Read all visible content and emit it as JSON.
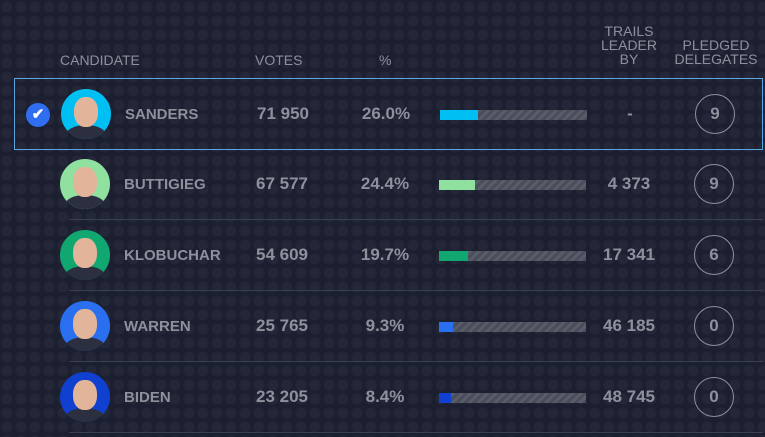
{
  "headers": {
    "candidate": "CANDIDATE",
    "votes": "VOTES",
    "pct": "%",
    "trails_1": "TRAILS",
    "trails_2": "LEADER",
    "trails_3": "BY",
    "pledged_1": "PLEDGED",
    "pledged_2": "DELEGATES"
  },
  "candidates": [
    {
      "name": "SANDERS",
      "votes": "71 950",
      "pct": "26.0%",
      "pct_value": 26.0,
      "trails": "-",
      "delegates": "9",
      "color": "#00c0f3",
      "winner": true,
      "check_icon": "✔"
    },
    {
      "name": "BUTTIGIEG",
      "votes": "67 577",
      "pct": "24.4%",
      "pct_value": 24.4,
      "trails": "4 373",
      "delegates": "9",
      "color": "#90e0a0"
    },
    {
      "name": "KLOBUCHAR",
      "votes": "54 609",
      "pct": "19.7%",
      "pct_value": 19.7,
      "trails": "17 341",
      "delegates": "6",
      "color": "#10a870"
    },
    {
      "name": "WARREN",
      "votes": "25 765",
      "pct": "9.3%",
      "pct_value": 9.3,
      "trails": "46 185",
      "delegates": "0",
      "color": "#2a6ff0"
    },
    {
      "name": "BIDEN",
      "votes": "23 205",
      "pct": "8.4%",
      "pct_value": 8.4,
      "trails": "48 745",
      "delegates": "0",
      "color": "#1040d0"
    }
  ]
}
